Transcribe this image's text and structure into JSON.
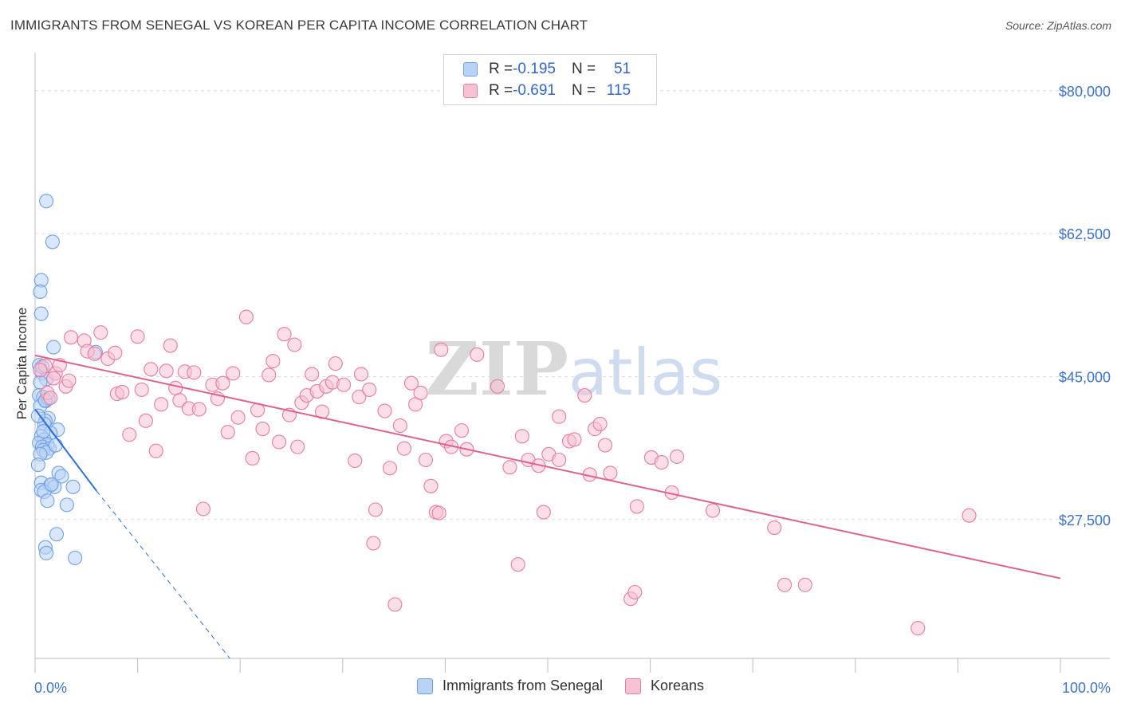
{
  "chart_data": {
    "type": "scatter",
    "title": "IMMIGRANTS FROM SENEGAL VS KOREAN PER CAPITA INCOME CORRELATION CHART",
    "source": "Source: ZipAtlas.com",
    "watermark": "ZIPatlas",
    "ylabel": "Per Capita Income",
    "xlim": [
      0,
      100
    ],
    "ylim": [
      10500,
      83500
    ],
    "x_tick_labels": [
      "0.0%",
      "100.0%"
    ],
    "y_ticks": [
      {
        "value": 80000,
        "label": "$80,000"
      },
      {
        "value": 62500,
        "label": "$62,500"
      },
      {
        "value": 45000,
        "label": "$45,000"
      },
      {
        "value": 27500,
        "label": "$27,500"
      }
    ],
    "legend": {
      "rows": [
        {
          "r_label": "R = ",
          "r_value": "-0.195",
          "n_label": "N = ",
          "n_value": "51"
        },
        {
          "r_label": "R = ",
          "r_value": "-0.691",
          "n_label": "N = ",
          "n_value": "115"
        }
      ]
    },
    "series": [
      {
        "name": "Immigrants from Senegal",
        "color": "#6fa0e8",
        "fill": "#b9d3f5",
        "trend": {
          "x0": 0,
          "y0": 41000,
          "x1": 6.0,
          "y1": 31000,
          "dash_x1": 19,
          "dash_y1": 10500
        },
        "points": [
          [
            1.1,
            66500
          ],
          [
            1.7,
            61500
          ],
          [
            0.6,
            56800
          ],
          [
            0.5,
            55400
          ],
          [
            0.6,
            52700
          ],
          [
            1.8,
            48600
          ],
          [
            0.4,
            46400
          ],
          [
            0.7,
            45400
          ],
          [
            1.1,
            44700
          ],
          [
            0.5,
            44300
          ],
          [
            0.4,
            42700
          ],
          [
            0.8,
            42500
          ],
          [
            1.0,
            42000
          ],
          [
            0.5,
            41400
          ],
          [
            1.3,
            39900
          ],
          [
            1.0,
            39600
          ],
          [
            0.9,
            39200
          ],
          [
            2.2,
            38500
          ],
          [
            1.5,
            38100
          ],
          [
            0.6,
            37700
          ],
          [
            0.9,
            37300
          ],
          [
            0.4,
            36900
          ],
          [
            1.2,
            36700
          ],
          [
            0.7,
            36400
          ],
          [
            1.4,
            36200
          ],
          [
            0.8,
            36000
          ],
          [
            1.1,
            35700
          ],
          [
            0.5,
            35500
          ],
          [
            0.3,
            34200
          ],
          [
            2.3,
            33200
          ],
          [
            2.6,
            32800
          ],
          [
            0.6,
            32000
          ],
          [
            1.5,
            31700
          ],
          [
            1.9,
            31500
          ],
          [
            3.7,
            31500
          ],
          [
            0.6,
            31100
          ],
          [
            0.9,
            30900
          ],
          [
            1.2,
            29800
          ],
          [
            3.1,
            29300
          ],
          [
            2.1,
            25700
          ],
          [
            1.0,
            24100
          ],
          [
            1.1,
            23400
          ],
          [
            3.9,
            22800
          ],
          [
            5.9,
            48000
          ],
          [
            0.3,
            40200
          ],
          [
            1.6,
            31800
          ],
          [
            0.7,
            46200
          ],
          [
            1.3,
            42300
          ],
          [
            0.8,
            38300
          ],
          [
            2.0,
            36600
          ],
          [
            1.0,
            42100
          ]
        ]
      },
      {
        "name": "Koreans",
        "color": "#e87ca0",
        "fill": "#f7c3d4",
        "trend": {
          "x0": 0,
          "y0": 47600,
          "x1": 100,
          "y1": 20300
        },
        "points": [
          [
            1.0,
            46300
          ],
          [
            1.2,
            43000
          ],
          [
            1.5,
            42400
          ],
          [
            2.0,
            45400
          ],
          [
            2.4,
            46400
          ],
          [
            3.0,
            43800
          ],
          [
            3.3,
            44500
          ],
          [
            3.5,
            49800
          ],
          [
            4.8,
            49400
          ],
          [
            5.1,
            48100
          ],
          [
            5.8,
            47800
          ],
          [
            6.4,
            50400
          ],
          [
            7.1,
            47200
          ],
          [
            7.8,
            47900
          ],
          [
            8.0,
            42900
          ],
          [
            8.5,
            43100
          ],
          [
            9.2,
            37900
          ],
          [
            10.0,
            49900
          ],
          [
            10.4,
            43400
          ],
          [
            10.8,
            39600
          ],
          [
            11.3,
            45900
          ],
          [
            11.8,
            35900
          ],
          [
            12.3,
            41600
          ],
          [
            12.8,
            45700
          ],
          [
            13.2,
            48800
          ],
          [
            13.7,
            43600
          ],
          [
            14.1,
            42100
          ],
          [
            14.6,
            45600
          ],
          [
            15.0,
            41100
          ],
          [
            15.5,
            45500
          ],
          [
            16.0,
            41000
          ],
          [
            16.4,
            28800
          ],
          [
            17.3,
            44000
          ],
          [
            17.8,
            42300
          ],
          [
            18.3,
            44200
          ],
          [
            18.8,
            38200
          ],
          [
            19.3,
            45400
          ],
          [
            19.8,
            40000
          ],
          [
            20.6,
            52300
          ],
          [
            21.2,
            35000
          ],
          [
            21.7,
            40900
          ],
          [
            22.2,
            38600
          ],
          [
            22.8,
            45200
          ],
          [
            23.2,
            46900
          ],
          [
            23.8,
            37000
          ],
          [
            24.3,
            50200
          ],
          [
            24.8,
            40300
          ],
          [
            25.3,
            48900
          ],
          [
            25.6,
            36400
          ],
          [
            26.0,
            41800
          ],
          [
            26.5,
            42700
          ],
          [
            27.0,
            45300
          ],
          [
            27.5,
            43200
          ],
          [
            28.0,
            40700
          ],
          [
            28.4,
            43800
          ],
          [
            29.0,
            44300
          ],
          [
            29.3,
            46600
          ],
          [
            30.1,
            44000
          ],
          [
            31.2,
            34700
          ],
          [
            31.6,
            42500
          ],
          [
            31.8,
            45300
          ],
          [
            32.6,
            43400
          ],
          [
            33.2,
            28700
          ],
          [
            33.0,
            24600
          ],
          [
            34.1,
            40800
          ],
          [
            34.6,
            33800
          ],
          [
            35.1,
            17100
          ],
          [
            35.6,
            39000
          ],
          [
            36.0,
            36200
          ],
          [
            36.7,
            44200
          ],
          [
            37.1,
            41600
          ],
          [
            37.6,
            43000
          ],
          [
            38.1,
            34800
          ],
          [
            38.6,
            31600
          ],
          [
            39.1,
            28400
          ],
          [
            39.4,
            28300
          ],
          [
            39.6,
            48300
          ],
          [
            40.1,
            37100
          ],
          [
            40.6,
            36400
          ],
          [
            41.6,
            38400
          ],
          [
            42.1,
            36100
          ],
          [
            43.1,
            47700
          ],
          [
            45.1,
            43800
          ],
          [
            46.3,
            33900
          ],
          [
            47.1,
            22000
          ],
          [
            47.5,
            37700
          ],
          [
            48.1,
            34800
          ],
          [
            49.1,
            34100
          ],
          [
            49.6,
            28400
          ],
          [
            50.1,
            35500
          ],
          [
            51.1,
            40100
          ],
          [
            51.1,
            34800
          ],
          [
            52.1,
            37100
          ],
          [
            52.6,
            37300
          ],
          [
            53.6,
            42700
          ],
          [
            54.1,
            33000
          ],
          [
            54.6,
            38600
          ],
          [
            55.1,
            39200
          ],
          [
            55.6,
            36600
          ],
          [
            56.1,
            33200
          ],
          [
            58.1,
            17800
          ],
          [
            58.5,
            18600
          ],
          [
            58.7,
            29100
          ],
          [
            60.1,
            35100
          ],
          [
            61.1,
            34500
          ],
          [
            62.1,
            30800
          ],
          [
            62.6,
            35200
          ],
          [
            66.1,
            28600
          ],
          [
            72.1,
            26500
          ],
          [
            73.1,
            19500
          ],
          [
            75.1,
            19500
          ],
          [
            86.1,
            14200
          ],
          [
            91.1,
            28000
          ],
          [
            0.5,
            45800
          ],
          [
            1.8,
            44800
          ]
        ]
      }
    ]
  }
}
